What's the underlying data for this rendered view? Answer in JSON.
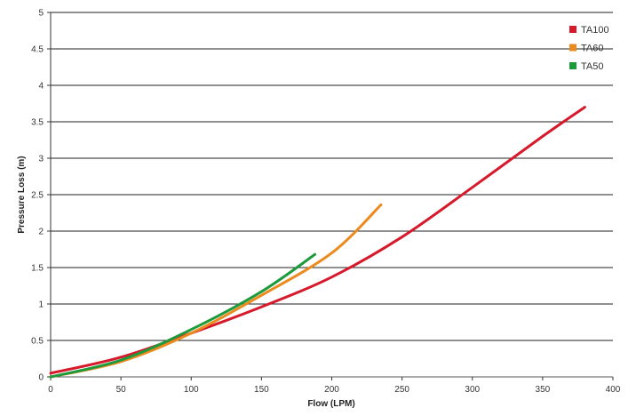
{
  "chart_data": {
    "type": "line",
    "xlabel": "Flow (LPM)",
    "ylabel": "Pressure Loss (m)",
    "xlim": [
      0,
      400
    ],
    "ylim": [
      0,
      5
    ],
    "x_ticks": [
      "0",
      "50",
      "100",
      "150",
      "200",
      "250",
      "300",
      "350",
      "400"
    ],
    "y_ticks": [
      "0",
      "0.5",
      "1",
      "1.5",
      "2",
      "2.5",
      "3",
      "3.5",
      "4",
      "4.5",
      "5"
    ],
    "grid": "horizontal",
    "legend_position": "top-right",
    "series": [
      {
        "name": "TA100",
        "color": "#d7192c",
        "points": [
          [
            0,
            0.05
          ],
          [
            50,
            0.27
          ],
          [
            100,
            0.6
          ],
          [
            150,
            0.96
          ],
          [
            200,
            1.37
          ],
          [
            250,
            1.92
          ],
          [
            300,
            2.6
          ],
          [
            350,
            3.3
          ],
          [
            380,
            3.7
          ]
        ]
      },
      {
        "name": "TA60",
        "color": "#eb8a1e",
        "points": [
          [
            0,
            0.0
          ],
          [
            50,
            0.21
          ],
          [
            100,
            0.6
          ],
          [
            150,
            1.12
          ],
          [
            200,
            1.7
          ],
          [
            235,
            2.36
          ]
        ]
      },
      {
        "name": "TA50",
        "color": "#1c9a3c",
        "points": [
          [
            0,
            0.0
          ],
          [
            50,
            0.23
          ],
          [
            100,
            0.65
          ],
          [
            150,
            1.17
          ],
          [
            188,
            1.68
          ]
        ]
      }
    ]
  }
}
